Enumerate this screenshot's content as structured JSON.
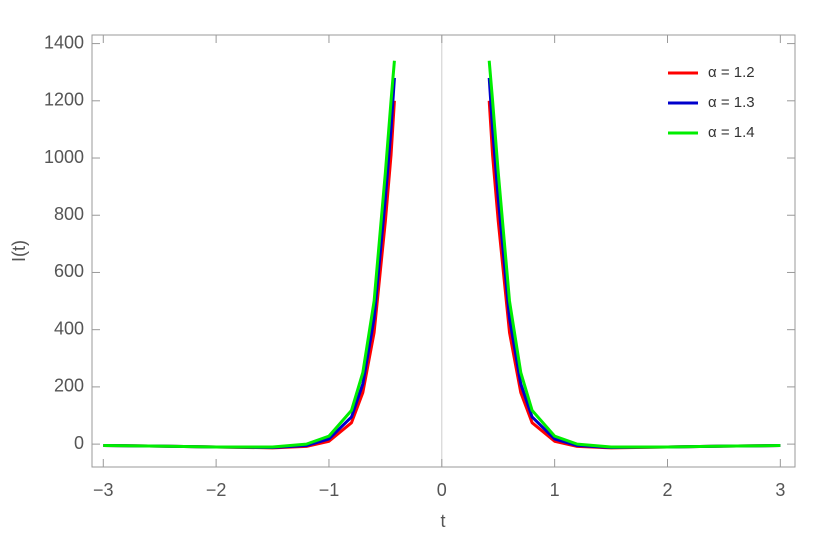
{
  "chart_data": {
    "type": "line",
    "x_label": "t",
    "y_label": "I(t)",
    "x": [
      -3,
      -2.5,
      -2,
      -1.5,
      -1.2,
      -1,
      -0.8,
      -0.7,
      -0.6,
      -0.5,
      -0.45,
      -0.42,
      0,
      0.42,
      0.45,
      0.5,
      0.6,
      0.7,
      0.8,
      1,
      1.2,
      1.5,
      2,
      2.5,
      3
    ],
    "series": [
      {
        "name": "α = 1.2",
        "color": "#ff0000",
        "values": [
          -5,
          -7,
          -10,
          -13,
          -8,
          10,
          75,
          180,
          390,
          780,
          1010,
          1200,
          null,
          1200,
          1010,
          780,
          390,
          180,
          75,
          10,
          -8,
          -13,
          -10,
          -7,
          -5
        ]
      },
      {
        "name": "α = 1.3",
        "color": "#0000cc",
        "values": [
          -5,
          -7,
          -10,
          -12,
          -5,
          18,
          95,
          210,
          440,
          860,
          1100,
          1280,
          null,
          1280,
          1100,
          860,
          440,
          210,
          95,
          18,
          -5,
          -12,
          -10,
          -7,
          -5
        ]
      },
      {
        "name": "α = 1.4",
        "color": "#00ee00",
        "values": [
          -5,
          -7,
          -10,
          -10,
          0,
          28,
          118,
          250,
          500,
          950,
          1200,
          1340,
          null,
          1340,
          1200,
          950,
          500,
          250,
          118,
          28,
          0,
          -10,
          -10,
          -7,
          -5
        ]
      }
    ],
    "xlim": [
      -3.1,
      3.13
    ],
    "ylim": [
      -80,
      1430
    ],
    "xticks": [
      {
        "value": -3,
        "label": "−3"
      },
      {
        "value": -2,
        "label": "−2"
      },
      {
        "value": -1,
        "label": "−1"
      },
      0,
      1,
      2,
      3
    ],
    "yticks": [
      0,
      200,
      400,
      600,
      800,
      1000,
      1200,
      1400
    ],
    "legend": "top-right"
  }
}
